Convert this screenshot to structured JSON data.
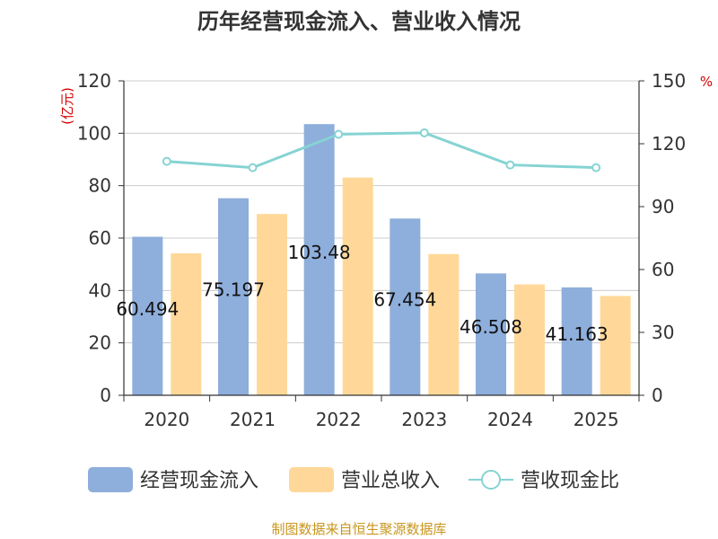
{
  "chart_data": {
    "type": "bar",
    "title": "历年经营现金流入、营业收入情况",
    "categories": [
      "2020",
      "2021",
      "2022",
      "2023",
      "2024",
      "2025"
    ],
    "series": [
      {
        "name": "经营现金流入",
        "type": "bar",
        "axis": "left",
        "color": "#8eaedb",
        "values": [
          60.494,
          75.197,
          103.48,
          67.454,
          46.508,
          41.163
        ],
        "labels": [
          "60.494",
          "75.197",
          "103.48",
          "67.454",
          "46.508",
          "41.163"
        ]
      },
      {
        "name": "营业总收入",
        "type": "bar",
        "axis": "left",
        "color": "#ffd899",
        "values": [
          54.2,
          69.2,
          83.1,
          53.9,
          42.3,
          37.9
        ]
      },
      {
        "name": "营收现金比",
        "type": "line",
        "axis": "right",
        "color": "#86d3d3",
        "values": [
          111.6,
          108.6,
          124.5,
          125.2,
          109.9,
          108.6
        ]
      }
    ],
    "y_left": {
      "unit": "(亿元)",
      "min": 0,
      "max": 120,
      "ticks": [
        "0",
        "20",
        "40",
        "60",
        "80",
        "100",
        "120"
      ]
    },
    "y_right": {
      "unit": "%",
      "min": 0,
      "max": 150,
      "ticks": [
        "0",
        "30",
        "60",
        "90",
        "120",
        "150"
      ]
    },
    "grid": true,
    "legend_position": "bottom"
  },
  "source": "制图数据来自恒生聚源数据库"
}
